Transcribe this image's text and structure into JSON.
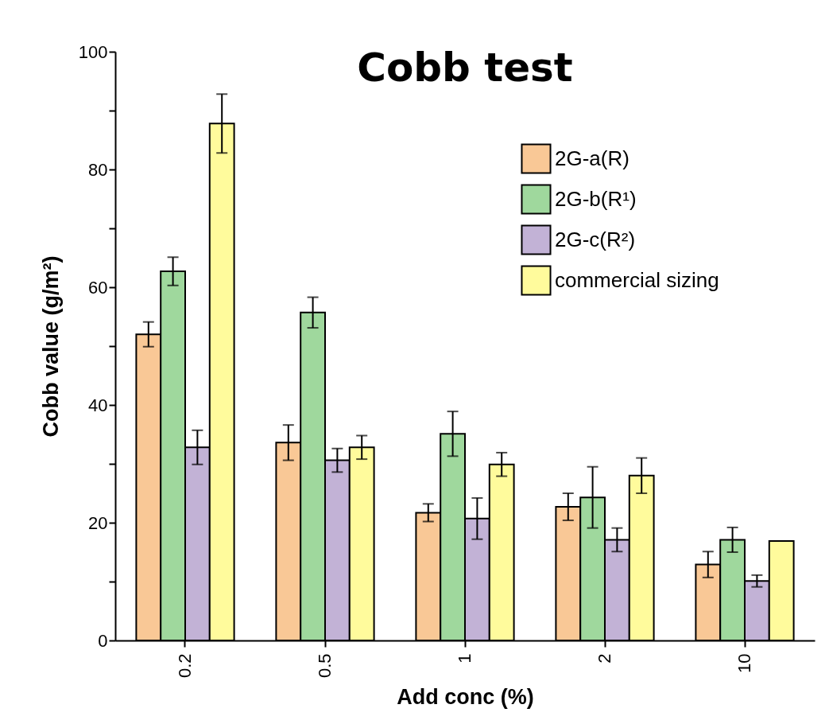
{
  "chart_data": {
    "type": "bar",
    "title": "Cobb test",
    "xlabel": "Add conc (%)",
    "ylabel": "Cobb value (g/m²)",
    "categories": [
      "0.2",
      "0.5",
      "1",
      "2",
      "10"
    ],
    "series": [
      {
        "name": "2G-a(R)",
        "color": "#f9c896",
        "values": [
          52.0,
          33.6,
          21.7,
          22.7,
          12.9
        ],
        "errors": [
          2.1,
          3.0,
          1.5,
          2.3,
          2.2
        ]
      },
      {
        "name": "2G-b(R¹)",
        "color": "#9fd89d",
        "values": [
          62.7,
          55.7,
          35.1,
          24.3,
          17.1
        ],
        "errors": [
          2.4,
          2.6,
          3.8,
          5.2,
          2.1
        ]
      },
      {
        "name": "2G-c(R²)",
        "color": "#c2b2d6",
        "values": [
          32.8,
          30.6,
          20.7,
          17.1,
          10.1
        ],
        "errors": [
          2.9,
          2.0,
          3.5,
          2.0,
          1.0
        ]
      },
      {
        "name": "commercial sizing",
        "color": "#fffb9c",
        "values": [
          87.8,
          32.8,
          29.9,
          28.0,
          16.9
        ],
        "errors": [
          5.0,
          2.0,
          2.0,
          3.0,
          null
        ]
      }
    ],
    "ylim": [
      0,
      100
    ],
    "yticks": [
      0,
      {
        "value": 10,
        "label": null
      },
      20,
      {
        "value": 30,
        "label": null
      },
      40,
      {
        "value": 50,
        "label": null
      },
      60,
      {
        "value": 70,
        "label": null
      },
      80,
      {
        "value": 90,
        "label": null
      },
      100
    ],
    "legend": "top right"
  }
}
